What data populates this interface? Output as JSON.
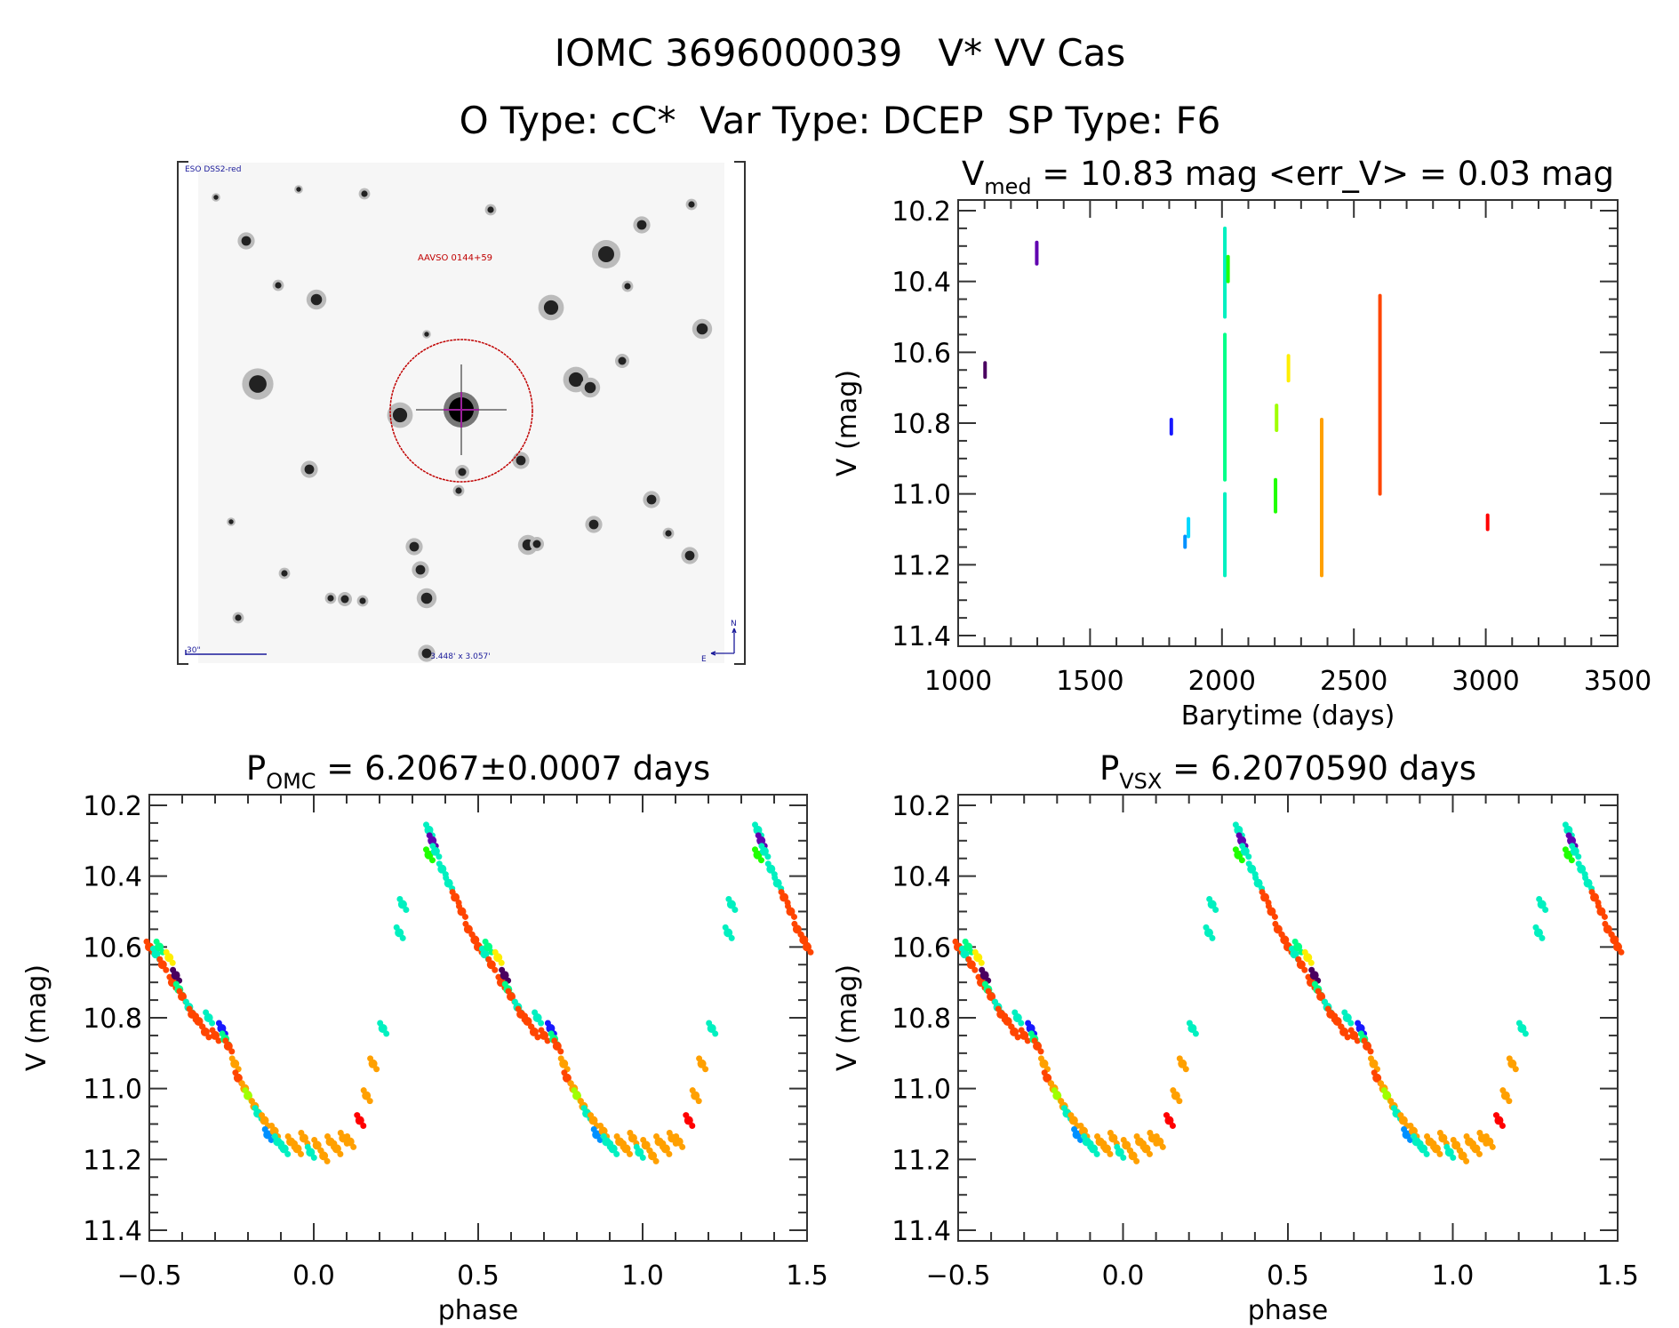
{
  "header": {
    "title": "IOMC 3696000039   V* VV Cas",
    "subtitle": "O Type: cC*  Var Type: DCEP  SP Type: F6"
  },
  "finder_image": {
    "survey_label": "ESO DSS2-red",
    "target_label": "AAVSO 0144+59",
    "scale_label": "30\"",
    "fov_label": "3.448' x 3.057'",
    "north_label": "N",
    "east_label": "E",
    "colors": {
      "survey_text": "#1a1a9a",
      "target_circle": "#c00000",
      "crosshair": "#a000a0"
    }
  },
  "palette": {
    "purple_dark": "#4a0060",
    "purple": "#6000b0",
    "blue": "#1818ff",
    "sky": "#0090ff",
    "cyan": "#00d8ff",
    "teal": "#00f0c0",
    "spring": "#00ff88",
    "green": "#20ff00",
    "lime": "#a0ff00",
    "yellow": "#ffee00",
    "orange": "#ffa000",
    "red_orange": "#ff4500",
    "red": "#ff0000"
  },
  "chart_data": [
    {
      "type": "scatter",
      "title_main": "V",
      "title_sub": "med",
      "title_rest": " = 10.83 mag <err_V> = 0.03 mag",
      "xlabel": "Barytime (days)",
      "ylabel": "V (mag)",
      "xlim": [
        1000,
        3500
      ],
      "ylim": [
        10.17,
        11.43
      ],
      "y_inverted": true,
      "xticks": [
        1000,
        1500,
        2000,
        2500,
        3000,
        3500
      ],
      "yticks": [
        "10.2",
        "10.4",
        "10.6",
        "10.8",
        "11.0",
        "11.2",
        "11.4"
      ],
      "segments": [
        {
          "t": 1102,
          "mag": [
            10.63,
            10.67
          ],
          "color": "purple_dark"
        },
        {
          "t": 1298,
          "mag": [
            10.29,
            10.35
          ],
          "color": "purple"
        },
        {
          "t": 1808,
          "mag": [
            10.79,
            10.83
          ],
          "color": "blue"
        },
        {
          "t": 1860,
          "mag": [
            11.12,
            11.15
          ],
          "color": "sky"
        },
        {
          "t": 1873,
          "mag": [
            11.07,
            11.12
          ],
          "color": "cyan"
        },
        {
          "t": 2011,
          "mag": [
            10.25,
            10.5
          ],
          "color": "teal"
        },
        {
          "t": 2011,
          "mag": [
            10.55,
            10.96
          ],
          "color": "spring"
        },
        {
          "t": 2011,
          "mag": [
            11.0,
            11.23
          ],
          "color": "teal"
        },
        {
          "t": 2023,
          "mag": [
            10.33,
            10.4
          ],
          "color": "green"
        },
        {
          "t": 2203,
          "mag": [
            10.96,
            11.05
          ],
          "color": "green"
        },
        {
          "t": 2207,
          "mag": [
            10.75,
            10.82
          ],
          "color": "lime"
        },
        {
          "t": 2252,
          "mag": [
            10.61,
            10.68
          ],
          "color": "yellow"
        },
        {
          "t": 2378,
          "mag": [
            10.79,
            11.23
          ],
          "color": "orange"
        },
        {
          "t": 2599,
          "mag": [
            10.44,
            11.0
          ],
          "color": "red_orange"
        },
        {
          "t": 3007,
          "mag": [
            11.06,
            11.1
          ],
          "color": "red"
        }
      ]
    },
    {
      "type": "scatter",
      "title_main": "P",
      "title_sub": "OMC",
      "title_rest": " = 6.2067±0.0007 days",
      "xlabel": "phase",
      "ylabel": "V (mag)",
      "xlim": [
        -0.5,
        1.5
      ],
      "ylim": [
        10.17,
        11.43
      ],
      "y_inverted": true,
      "xticks": [
        "−0.5",
        "0.0",
        "0.5",
        "1.0",
        "1.5"
      ],
      "yticks": [
        "10.2",
        "10.4",
        "10.6",
        "10.8",
        "11.0",
        "11.2",
        "11.4"
      ],
      "points": [
        [
          0.35,
          10.27,
          "teal"
        ],
        [
          0.35,
          10.34,
          "green"
        ],
        [
          0.36,
          10.3,
          "purple"
        ],
        [
          0.37,
          10.33,
          "teal"
        ],
        [
          0.39,
          10.38,
          "teal"
        ],
        [
          0.41,
          10.42,
          "teal"
        ],
        [
          0.43,
          10.46,
          "red_orange"
        ],
        [
          0.45,
          10.5,
          "red_orange"
        ],
        [
          0.47,
          10.55,
          "red_orange"
        ],
        [
          0.49,
          10.58,
          "red_orange"
        ],
        [
          0.5,
          10.6,
          "red_orange"
        ],
        [
          0.52,
          10.62,
          "teal"
        ],
        [
          0.53,
          10.6,
          "spring"
        ],
        [
          0.54,
          10.65,
          "red_orange"
        ],
        [
          0.56,
          10.63,
          "yellow"
        ],
        [
          0.57,
          10.7,
          "red_orange"
        ],
        [
          0.58,
          10.68,
          "purple_dark"
        ],
        [
          0.59,
          10.72,
          "spring"
        ],
        [
          0.6,
          10.74,
          "red_orange"
        ],
        [
          0.62,
          10.77,
          "teal"
        ],
        [
          0.63,
          10.79,
          "red_orange"
        ],
        [
          0.65,
          10.81,
          "red_orange"
        ],
        [
          0.67,
          10.84,
          "red_orange"
        ],
        [
          0.68,
          10.8,
          "teal"
        ],
        [
          0.7,
          10.85,
          "red_orange"
        ],
        [
          0.72,
          10.83,
          "blue"
        ],
        [
          0.73,
          10.86,
          "spring"
        ],
        [
          0.74,
          10.88,
          "red_orange"
        ],
        [
          0.76,
          10.93,
          "orange"
        ],
        [
          0.77,
          10.97,
          "red_orange"
        ],
        [
          0.79,
          11.0,
          "orange"
        ],
        [
          0.8,
          11.02,
          "lime"
        ],
        [
          0.82,
          11.05,
          "orange"
        ],
        [
          0.83,
          11.07,
          "teal"
        ],
        [
          0.85,
          11.09,
          "orange"
        ],
        [
          0.86,
          11.13,
          "sky"
        ],
        [
          0.88,
          11.12,
          "orange"
        ],
        [
          0.89,
          11.15,
          "teal"
        ],
        [
          0.91,
          11.17,
          "teal"
        ],
        [
          0.93,
          11.15,
          "orange"
        ],
        [
          0.95,
          11.17,
          "orange"
        ],
        [
          0.97,
          11.14,
          "orange"
        ],
        [
          0.99,
          11.18,
          "teal"
        ],
        [
          0.01,
          11.16,
          "orange"
        ],
        [
          0.03,
          11.19,
          "orange"
        ],
        [
          0.05,
          11.15,
          "orange"
        ],
        [
          0.07,
          11.17,
          "orange"
        ],
        [
          0.09,
          11.14,
          "orange"
        ],
        [
          0.11,
          11.15,
          "orange"
        ],
        [
          0.14,
          11.09,
          "red"
        ],
        [
          0.16,
          11.02,
          "orange"
        ],
        [
          0.18,
          10.93,
          "orange"
        ],
        [
          0.21,
          10.83,
          "teal"
        ],
        [
          0.26,
          10.56,
          "teal"
        ],
        [
          0.27,
          10.48,
          "teal"
        ]
      ]
    },
    {
      "type": "scatter",
      "title_main": "P",
      "title_sub": "VSX",
      "title_rest": " = 6.2070590 days",
      "xlabel": "phase",
      "ylabel": "V (mag)",
      "xlim": [
        -0.5,
        1.5
      ],
      "ylim": [
        10.17,
        11.43
      ],
      "y_inverted": true,
      "xticks": [
        "−0.5",
        "0.0",
        "0.5",
        "1.0",
        "1.5"
      ],
      "yticks": [
        "10.2",
        "10.4",
        "10.6",
        "10.8",
        "11.0",
        "11.2",
        "11.4"
      ],
      "points": [
        [
          0.35,
          10.27,
          "teal"
        ],
        [
          0.35,
          10.34,
          "green"
        ],
        [
          0.36,
          10.3,
          "purple"
        ],
        [
          0.37,
          10.33,
          "teal"
        ],
        [
          0.39,
          10.38,
          "teal"
        ],
        [
          0.41,
          10.42,
          "teal"
        ],
        [
          0.43,
          10.46,
          "red_orange"
        ],
        [
          0.45,
          10.5,
          "red_orange"
        ],
        [
          0.47,
          10.55,
          "red_orange"
        ],
        [
          0.49,
          10.58,
          "red_orange"
        ],
        [
          0.5,
          10.6,
          "red_orange"
        ],
        [
          0.52,
          10.62,
          "teal"
        ],
        [
          0.53,
          10.6,
          "spring"
        ],
        [
          0.54,
          10.65,
          "red_orange"
        ],
        [
          0.56,
          10.63,
          "yellow"
        ],
        [
          0.57,
          10.7,
          "red_orange"
        ],
        [
          0.58,
          10.68,
          "purple_dark"
        ],
        [
          0.59,
          10.72,
          "spring"
        ],
        [
          0.6,
          10.74,
          "red_orange"
        ],
        [
          0.62,
          10.77,
          "teal"
        ],
        [
          0.63,
          10.79,
          "red_orange"
        ],
        [
          0.65,
          10.81,
          "red_orange"
        ],
        [
          0.67,
          10.84,
          "red_orange"
        ],
        [
          0.68,
          10.8,
          "teal"
        ],
        [
          0.7,
          10.85,
          "red_orange"
        ],
        [
          0.72,
          10.83,
          "blue"
        ],
        [
          0.73,
          10.86,
          "spring"
        ],
        [
          0.74,
          10.88,
          "red_orange"
        ],
        [
          0.76,
          10.93,
          "orange"
        ],
        [
          0.77,
          10.97,
          "red_orange"
        ],
        [
          0.79,
          11.0,
          "orange"
        ],
        [
          0.8,
          11.02,
          "lime"
        ],
        [
          0.82,
          11.05,
          "orange"
        ],
        [
          0.83,
          11.07,
          "teal"
        ],
        [
          0.85,
          11.09,
          "orange"
        ],
        [
          0.86,
          11.13,
          "sky"
        ],
        [
          0.88,
          11.12,
          "orange"
        ],
        [
          0.89,
          11.15,
          "teal"
        ],
        [
          0.91,
          11.17,
          "teal"
        ],
        [
          0.93,
          11.15,
          "orange"
        ],
        [
          0.95,
          11.17,
          "orange"
        ],
        [
          0.97,
          11.14,
          "orange"
        ],
        [
          0.99,
          11.18,
          "teal"
        ],
        [
          0.01,
          11.16,
          "orange"
        ],
        [
          0.03,
          11.19,
          "orange"
        ],
        [
          0.05,
          11.15,
          "orange"
        ],
        [
          0.07,
          11.17,
          "orange"
        ],
        [
          0.09,
          11.14,
          "orange"
        ],
        [
          0.11,
          11.15,
          "orange"
        ],
        [
          0.14,
          11.09,
          "red"
        ],
        [
          0.16,
          11.02,
          "orange"
        ],
        [
          0.18,
          10.93,
          "orange"
        ],
        [
          0.21,
          10.83,
          "teal"
        ],
        [
          0.26,
          10.56,
          "teal"
        ],
        [
          0.27,
          10.48,
          "teal"
        ]
      ]
    }
  ]
}
